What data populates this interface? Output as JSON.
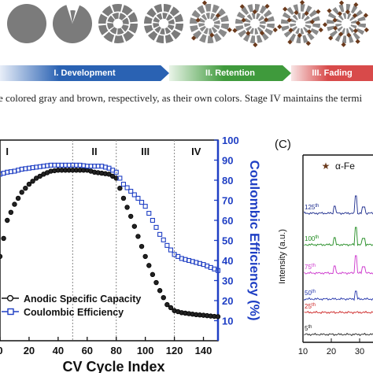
{
  "stages": {
    "colors": {
      "gray": "#7b7b7b",
      "brown": "#6b3a1c",
      "development": "#2a62b3",
      "retention": "#3f9a3c",
      "fading": "#d84a4a"
    },
    "circle_count": 8,
    "bands": [
      {
        "label": "I. Development"
      },
      {
        "label": "II. Retention"
      },
      {
        "label": "III. Fading"
      }
    ]
  },
  "caption_fragment": "e colored gray and brown, respectively, as their own colors. Stage IV maintains the termi",
  "chart_data": [
    {
      "type": "line",
      "xlabel": "CV Cycle Index",
      "xlim": [
        0,
        150
      ],
      "xticks": [
        "0",
        "20",
        "40",
        "60",
        "80",
        "100",
        "120",
        "140"
      ],
      "ylabel_right": "Coulombic Efficiency (%)",
      "y2lim": [
        0,
        100
      ],
      "y2ticks": [
        "10",
        "20",
        "30",
        "40",
        "50",
        "60",
        "70",
        "80",
        "90",
        "100"
      ],
      "stage_dividers": [
        50,
        80,
        120
      ],
      "stage_labels": [
        {
          "label": "I",
          "x": 5
        },
        {
          "label": "II",
          "x": 65
        },
        {
          "label": "III",
          "x": 100
        },
        {
          "label": "IV",
          "x": 135
        }
      ],
      "legend_position": "lower-left",
      "series": [
        {
          "name": "Anodic Specific Capacity",
          "marker": "circle",
          "color": "#111111",
          "axis": "left",
          "x": [
            0,
            5,
            10,
            15,
            20,
            25,
            30,
            35,
            40,
            45,
            50,
            55,
            60,
            65,
            70,
            75,
            80,
            85,
            90,
            95,
            100,
            105,
            110,
            115,
            120,
            125,
            130,
            135,
            140,
            145,
            150
          ],
          "y": [
            42,
            60,
            68,
            74,
            78,
            81,
            83,
            84.5,
            85,
            85,
            85,
            85,
            85,
            84,
            83.5,
            83,
            81,
            71,
            62,
            52,
            42,
            33,
            25,
            18,
            15,
            14,
            13.5,
            13,
            12.7,
            12.3,
            12
          ]
        },
        {
          "name": "Coulombic Efficiency",
          "marker": "square",
          "color": "#1f3fc4",
          "axis": "right",
          "x": [
            0,
            5,
            10,
            15,
            20,
            25,
            30,
            35,
            40,
            45,
            50,
            55,
            60,
            65,
            70,
            75,
            80,
            85,
            90,
            95,
            100,
            105,
            110,
            115,
            120,
            125,
            130,
            135,
            140,
            145,
            150
          ],
          "y": [
            83,
            84,
            84.5,
            85.5,
            86,
            86.5,
            87,
            87.5,
            87.5,
            87.5,
            87.5,
            87.5,
            87,
            87,
            87,
            86,
            84,
            78,
            74.5,
            71,
            67,
            60,
            53,
            47.5,
            43,
            41,
            40,
            39,
            38,
            36.5,
            35
          ]
        }
      ]
    },
    {
      "type": "line",
      "panel_label": "(C)",
      "ylabel": "Intensity (a.u.)",
      "xticks": [
        "10",
        "20",
        "30"
      ],
      "legend": "α-Fe",
      "cycle_labels": [
        {
          "base": "125",
          "sup": "th",
          "color": "#1a2a8c"
        },
        {
          "base": "100",
          "sup": "th",
          "color": "#1e8a1e"
        },
        {
          "base": "75",
          "sup": "th",
          "color": "#cc33cc"
        },
        {
          "base": "50",
          "sup": "th",
          "color": "#2233aa"
        },
        {
          "base": "25",
          "sup": "th",
          "color": "#cc2222"
        },
        {
          "base": "5",
          "sup": "th",
          "color": "#222222"
        }
      ]
    }
  ]
}
